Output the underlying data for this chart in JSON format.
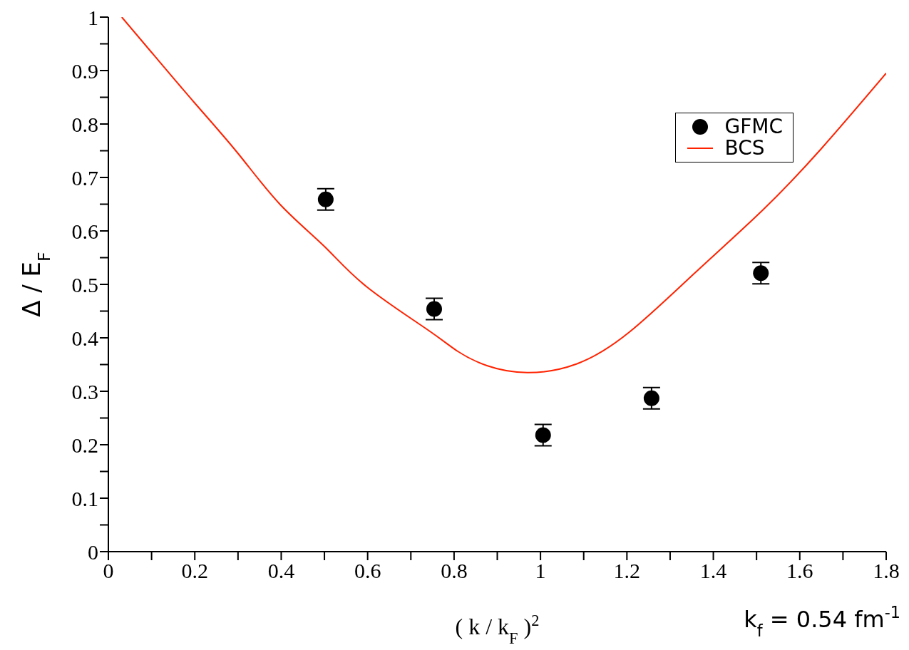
{
  "chart_data": {
    "type": "scatter",
    "xlabel": "( k / k$_{F}$ )$^{2}$",
    "ylabel": "Δ / E$_{F}$",
    "annotations": [
      "k$_{f}$ = 0.54 fm$^{-1}$"
    ],
    "xlim": [
      0,
      1.8
    ],
    "ylim": [
      0,
      1
    ],
    "xticks": [
      0,
      {
        "value": 0.1,
        "label": null
      },
      0.2,
      {
        "value": 0.3,
        "label": null
      },
      0.4,
      {
        "value": 0.5,
        "label": null
      },
      0.6,
      {
        "value": 0.7,
        "label": null
      },
      0.8,
      {
        "value": 0.9,
        "label": null
      },
      1,
      {
        "value": 1.1,
        "label": null
      },
      1.2,
      {
        "value": 1.3,
        "label": null
      },
      1.4,
      {
        "value": 1.5,
        "label": null
      },
      1.6,
      {
        "value": 1.7,
        "label": null
      },
      1.8
    ],
    "yticks": [
      0,
      {
        "value": 0.05,
        "label": null
      },
      0.1,
      {
        "value": 0.15,
        "label": null
      },
      0.2,
      {
        "value": 0.25,
        "label": null
      },
      0.3,
      {
        "value": 0.35,
        "label": null
      },
      0.4,
      {
        "value": 0.45,
        "label": null
      },
      0.5,
      {
        "value": 0.55,
        "label": null
      },
      0.6,
      {
        "value": 0.65,
        "label": null
      },
      0.7,
      {
        "value": 0.75,
        "label": null
      },
      0.8,
      {
        "value": 0.85,
        "label": null
      },
      0.9,
      {
        "value": 0.95,
        "label": null
      },
      1
    ],
    "grid": false,
    "legend": "top right",
    "series": [
      {
        "name": "GFMC",
        "marker": "circle",
        "color": "#000000",
        "x": [
          0.503,
          0.754,
          1.006,
          1.257,
          1.51
        ],
        "values": [
          0.659,
          0.454,
          0.218,
          0.287,
          0.521
        ],
        "errors": [
          0.02,
          0.02,
          0.02,
          0.02,
          0.02
        ]
      },
      {
        "name": "BCS",
        "type": "line",
        "marker": "none",
        "line_style": "solid",
        "color": "#ff2200",
        "x": [
          0.031,
          0.1,
          0.198,
          0.3,
          0.398,
          0.5,
          0.597,
          0.739,
          0.808,
          0.876,
          0.969,
          1.083,
          1.206,
          1.358,
          1.513,
          1.65,
          1.8
        ],
        "values": [
          1.0,
          0.934,
          0.841,
          0.745,
          0.649,
          0.571,
          0.496,
          0.415,
          0.375,
          0.348,
          0.335,
          0.351,
          0.411,
          0.522,
          0.638,
          0.754,
          0.895
        ]
      }
    ]
  }
}
